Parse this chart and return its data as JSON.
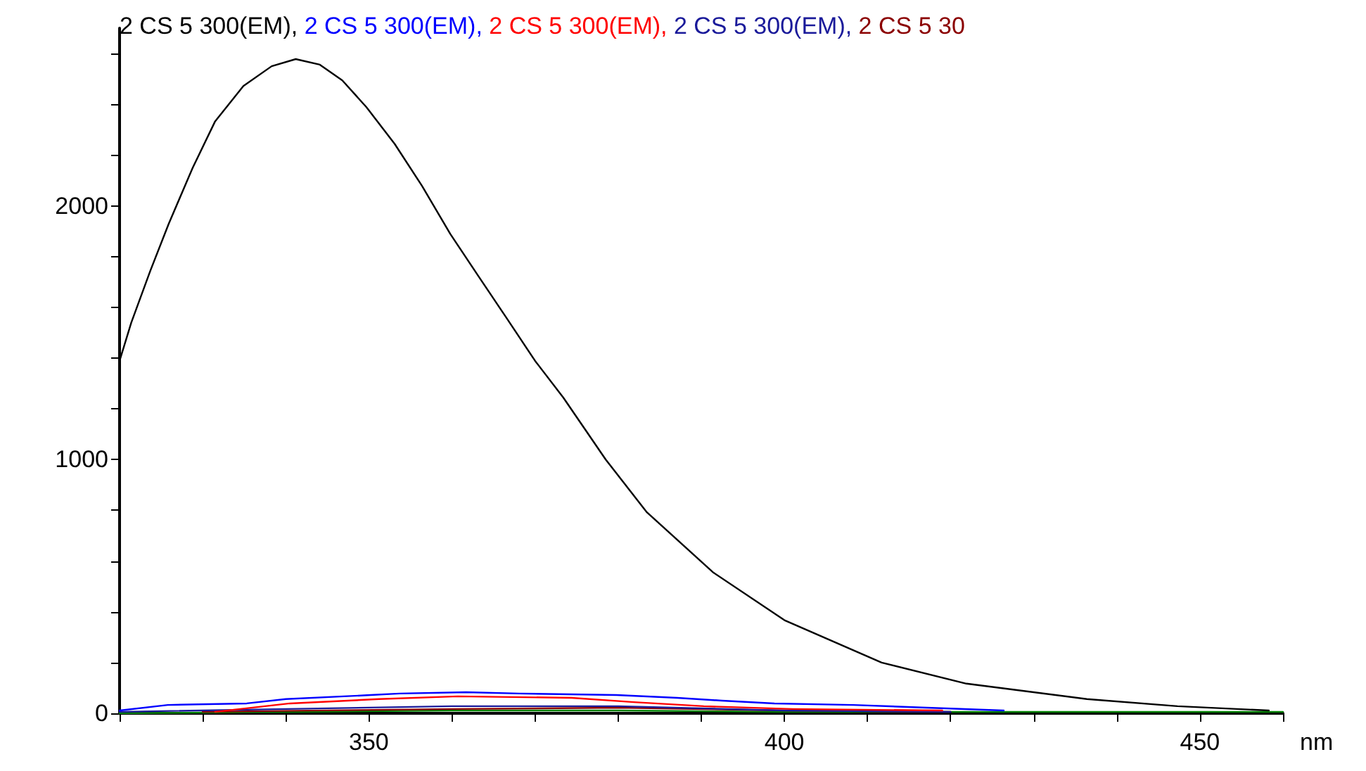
{
  "chart_data": {
    "type": "line",
    "xlabel": "nm",
    "legend": "top",
    "grid": false,
    "marker": "none",
    "line_style": "solid",
    "xlim": [
      320,
      460
    ],
    "xticks": [
      {
        "value": 320,
        "label": null
      },
      {
        "value": 330,
        "label": null
      },
      {
        "value": 340,
        "label": null
      },
      350,
      {
        "value": 360,
        "label": null
      },
      {
        "value": 370,
        "label": null
      },
      {
        "value": 380,
        "label": null
      },
      {
        "value": 390,
        "label": null
      },
      400,
      {
        "value": 410,
        "label": null
      },
      {
        "value": 420,
        "label": null
      },
      {
        "value": 430,
        "label": null
      },
      {
        "value": 440,
        "label": null
      },
      450,
      {
        "value": 460,
        "label": null
      }
    ],
    "ylim": [
      0,
      2700
    ],
    "yticks": [
      0,
      {
        "value": 200,
        "label": null
      },
      {
        "value": 400,
        "label": null
      },
      {
        "value": 600,
        "label": null
      },
      {
        "value": 800,
        "label": null
      },
      1000,
      {
        "value": 1200,
        "label": null
      },
      {
        "value": 1400,
        "label": null
      },
      {
        "value": 1600,
        "label": null
      },
      {
        "value": 1800,
        "label": null
      },
      2000,
      {
        "value": 2200,
        "label": null
      },
      {
        "value": 2400,
        "label": null
      },
      {
        "value": 2600,
        "label": null
      }
    ],
    "series": [
      {
        "name": "2 CS 5 300(EM),",
        "color": "#000000",
        "x": [
          320,
          321.4,
          323.7,
          325.9,
          328.8,
          331.5,
          334.9,
          338.3,
          341.2,
          344.1,
          346.8,
          349.7,
          353.1,
          356.4,
          359.8,
          363.2,
          366.6,
          370,
          373.4,
          378.5,
          383.4,
          391.4,
          400,
          411.7,
          421.9,
          436.4,
          447.3,
          458.3
        ],
        "values": [
          1389,
          1539,
          1744,
          1928,
          2150,
          2333,
          2472,
          2550,
          2578,
          2556,
          2494,
          2389,
          2244,
          2078,
          1889,
          1722,
          1556,
          1389,
          1244,
          1000,
          794,
          556,
          367,
          200,
          117,
          56,
          28,
          11
        ]
      },
      {
        "name": "2 CS 5 300(EM),",
        "color": "#0000ff",
        "x": [
          320,
          325.8,
          335.3,
          340,
          350.2,
          353.7,
          361.7,
          368.1,
          379.8,
          387.1,
          392.5,
          398.8,
          408.3,
          426.4
        ],
        "values": [
          11,
          33,
          39,
          56,
          72,
          78,
          83,
          78,
          72,
          61,
          50,
          39,
          33,
          11
        ]
      },
      {
        "name": "2 CS 5 300(EM),",
        "color": "#ff0000",
        "x": [
          331.5,
          340.5,
          351.2,
          360.7,
          374.4,
          381.9,
          390.3,
          401,
          419
        ],
        "values": [
          6,
          39,
          56,
          67,
          61,
          44,
          28,
          17,
          11
        ]
      },
      {
        "name": "2 CS 5 300(EM),",
        "color": "#1a1a9a",
        "x": [
          320,
          340,
          360,
          380,
          400,
          420
        ],
        "values": [
          6,
          17,
          28,
          28,
          11,
          6
        ]
      },
      {
        "name": "2 CS 5 30",
        "color": "#8b0000",
        "x": [
          330,
          360,
          380,
          400,
          420
        ],
        "values": [
          6,
          17,
          22,
          11,
          6
        ]
      },
      {
        "color": "#008000",
        "x": [
          320,
          360,
          380,
          400,
          460
        ],
        "values": [
          0,
          11,
          11,
          6,
          6
        ]
      }
    ]
  }
}
